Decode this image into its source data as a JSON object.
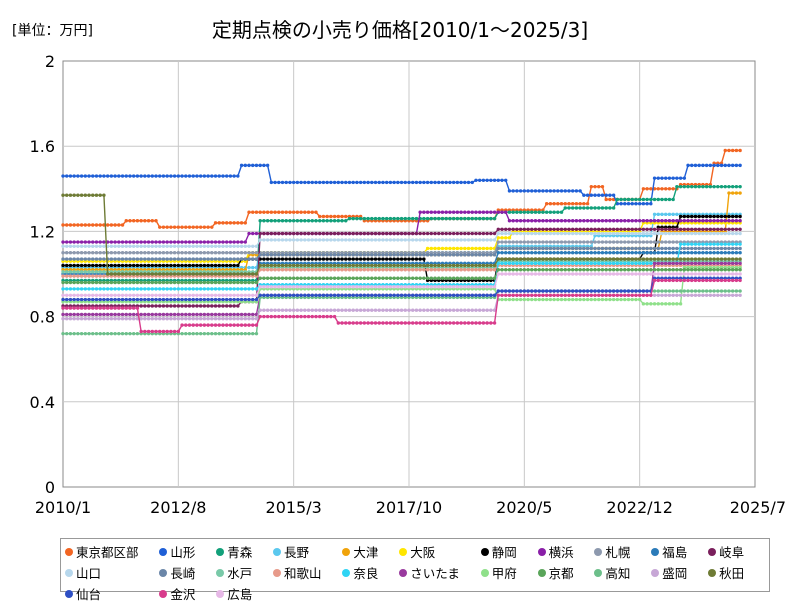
{
  "chart_data": {
    "type": "line",
    "title": "定期点検の小売り価格[2010/1～2025/3]",
    "unit_label": "[単位：万円]",
    "x_ticks": [
      "2010/1",
      "2012/8",
      "2015/3",
      "2017/10",
      "2020/5",
      "2022/12",
      "2025/7"
    ],
    "xlim": [
      "2010/1",
      "2025/7"
    ],
    "y_ticks": [
      "0",
      "0.4",
      "0.8",
      "1.2",
      "1.6",
      "2"
    ],
    "ylim": [
      0,
      2
    ],
    "grid": true,
    "legend_position": "bottom",
    "series": [
      {
        "name": "東京都区部",
        "color": "#f26522",
        "points": [
          [
            "2010/1",
            1.23
          ],
          [
            "2011/5",
            1.23
          ],
          [
            "2011/6",
            1.25
          ],
          [
            "2012/2",
            1.25
          ],
          [
            "2012/3",
            1.22
          ],
          [
            "2013/5",
            1.22
          ],
          [
            "2013/6",
            1.24
          ],
          [
            "2014/2",
            1.24
          ],
          [
            "2014/3",
            1.29
          ],
          [
            "2015/9",
            1.29
          ],
          [
            "2015/10",
            1.27
          ],
          [
            "2016/9",
            1.27
          ],
          [
            "2016/10",
            1.25
          ],
          [
            "2018/3",
            1.25
          ],
          [
            "2018/4",
            1.26
          ],
          [
            "2019/9",
            1.26
          ],
          [
            "2019/10",
            1.3
          ],
          [
            "2020/10",
            1.3
          ],
          [
            "2020/11",
            1.33
          ],
          [
            "2021/10",
            1.33
          ],
          [
            "2021/11",
            1.41
          ],
          [
            "2022/2",
            1.41
          ],
          [
            "2022/3",
            1.35
          ],
          [
            "2022/12",
            1.35
          ],
          [
            "2023/1",
            1.4
          ],
          [
            "2023/10",
            1.4
          ],
          [
            "2023/11",
            1.42
          ],
          [
            "2024/7",
            1.42
          ],
          [
            "2024/8",
            1.52
          ],
          [
            "2024/10",
            1.52
          ],
          [
            "2024/11",
            1.58
          ],
          [
            "2025/3",
            1.58
          ]
        ]
      },
      {
        "name": "山形",
        "color": "#1f5fd6",
        "points": [
          [
            "2010/1",
            1.46
          ],
          [
            "2013/12",
            1.46
          ],
          [
            "2014/1",
            1.51
          ],
          [
            "2014/8",
            1.51
          ],
          [
            "2014/9",
            1.43
          ],
          [
            "2019/3",
            1.43
          ],
          [
            "2019/4",
            1.44
          ],
          [
            "2019/12",
            1.44
          ],
          [
            "2020/1",
            1.39
          ],
          [
            "2021/8",
            1.39
          ],
          [
            "2021/9",
            1.37
          ],
          [
            "2022/5",
            1.37
          ],
          [
            "2022/6",
            1.33
          ],
          [
            "2023/3",
            1.33
          ],
          [
            "2023/4",
            1.45
          ],
          [
            "2023/12",
            1.45
          ],
          [
            "2024/1",
            1.51
          ],
          [
            "2025/3",
            1.51
          ]
        ]
      },
      {
        "name": "青森",
        "color": "#12a07a",
        "points": [
          [
            "2010/1",
            0.97
          ],
          [
            "2014/5",
            0.97
          ],
          [
            "2014/6",
            1.25
          ],
          [
            "2016/5",
            1.25
          ],
          [
            "2016/6",
            1.26
          ],
          [
            "2019/9",
            1.26
          ],
          [
            "2019/10",
            1.29
          ],
          [
            "2021/3",
            1.29
          ],
          [
            "2021/4",
            1.31
          ],
          [
            "2022/5",
            1.31
          ],
          [
            "2022/6",
            1.35
          ],
          [
            "2023/9",
            1.35
          ],
          [
            "2023/10",
            1.41
          ],
          [
            "2025/3",
            1.41
          ]
        ]
      },
      {
        "name": "長野",
        "color": "#5bc8ee",
        "points": [
          [
            "2010/1",
            1.03
          ],
          [
            "2014/5",
            1.03
          ],
          [
            "2014/6",
            1.1
          ],
          [
            "2019/9",
            1.1
          ],
          [
            "2019/10",
            1.13
          ],
          [
            "2021/11",
            1.13
          ],
          [
            "2021/12",
            1.18
          ],
          [
            "2023/3",
            1.18
          ],
          [
            "2023/4",
            1.28
          ],
          [
            "2025/3",
            1.28
          ]
        ]
      },
      {
        "name": "大津",
        "color": "#f0a30a",
        "points": [
          [
            "2010/1",
            1.02
          ],
          [
            "2014/2",
            1.02
          ],
          [
            "2014/3",
            1.09
          ],
          [
            "2019/9",
            1.09
          ],
          [
            "2019/10",
            1.12
          ],
          [
            "2023/5",
            1.12
          ],
          [
            "2023/6",
            1.2
          ],
          [
            "2024/11",
            1.2
          ],
          [
            "2024/12",
            1.38
          ],
          [
            "2025/3",
            1.38
          ]
        ]
      },
      {
        "name": "大阪",
        "color": "#ffe600",
        "points": [
          [
            "2010/1",
            1.06
          ],
          [
            "2014/2",
            1.06
          ],
          [
            "2014/3",
            1.1
          ],
          [
            "2018/2",
            1.1
          ],
          [
            "2018/3",
            1.12
          ],
          [
            "2019/9",
            1.12
          ],
          [
            "2019/10",
            1.17
          ],
          [
            "2020/1",
            1.17
          ],
          [
            "2020/2",
            1.2
          ],
          [
            "2022/12",
            1.2
          ],
          [
            "2023/1",
            1.24
          ],
          [
            "2025/3",
            1.24
          ]
        ]
      },
      {
        "name": "静岡",
        "color": "#000000",
        "points": [
          [
            "2010/1",
            1.04
          ],
          [
            "2013/12",
            1.04
          ],
          [
            "2014/1",
            1.07
          ],
          [
            "2018/2",
            1.07
          ],
          [
            "2018/3",
            0.97
          ],
          [
            "2019/9",
            0.97
          ],
          [
            "2019/10",
            1.07
          ],
          [
            "2022/12",
            1.07
          ],
          [
            "2023/1",
            1.1
          ],
          [
            "2023/4",
            1.1
          ],
          [
            "2023/5",
            1.22
          ],
          [
            "2023/10",
            1.22
          ],
          [
            "2023/11",
            1.27
          ],
          [
            "2025/3",
            1.27
          ]
        ]
      },
      {
        "name": "横浜",
        "color": "#8a1fa8",
        "points": [
          [
            "2010/1",
            1.15
          ],
          [
            "2014/2",
            1.15
          ],
          [
            "2014/3",
            1.19
          ],
          [
            "2017/12",
            1.19
          ],
          [
            "2018/1",
            1.29
          ],
          [
            "2019/12",
            1.29
          ],
          [
            "2020/1",
            1.25
          ],
          [
            "2025/3",
            1.25
          ]
        ]
      },
      {
        "name": "札幌",
        "color": "#8d99ae",
        "points": [
          [
            "2010/1",
            1.1
          ],
          [
            "2019/9",
            1.1
          ],
          [
            "2019/10",
            1.15
          ],
          [
            "2025/3",
            1.15
          ]
        ]
      },
      {
        "name": "福島",
        "color": "#2b7bb9",
        "points": [
          [
            "2010/1",
            1.0
          ],
          [
            "2014/5",
            1.0
          ],
          [
            "2014/6",
            1.05
          ],
          [
            "2019/9",
            1.05
          ],
          [
            "2019/10",
            1.1
          ],
          [
            "2025/3",
            1.1
          ]
        ]
      },
      {
        "name": "岐阜",
        "color": "#7a1f5c",
        "points": [
          [
            "2010/1",
            0.85
          ],
          [
            "2013/12",
            0.85
          ],
          [
            "2014/1",
            0.87
          ],
          [
            "2014/5",
            0.87
          ],
          [
            "2014/6",
            1.19
          ],
          [
            "2019/9",
            1.19
          ],
          [
            "2019/10",
            1.21
          ],
          [
            "2025/3",
            1.21
          ]
        ]
      },
      {
        "name": "山口",
        "color": "#b7d7ec",
        "points": [
          [
            "2010/1",
            1.13
          ],
          [
            "2014/5",
            1.13
          ],
          [
            "2014/6",
            1.16
          ],
          [
            "2019/9",
            1.16
          ],
          [
            "2019/10",
            1.19
          ],
          [
            "2025/3",
            1.19
          ]
        ]
      },
      {
        "name": "長崎",
        "color": "#6b86a8",
        "points": [
          [
            "2010/1",
            1.07
          ],
          [
            "2014/5",
            1.07
          ],
          [
            "2014/6",
            1.09
          ],
          [
            "2019/9",
            1.09
          ],
          [
            "2019/10",
            1.12
          ],
          [
            "2025/3",
            1.12
          ]
        ]
      },
      {
        "name": "水戸",
        "color": "#79c9a8",
        "points": [
          [
            "2010/1",
            1.01
          ],
          [
            "2014/5",
            1.01
          ],
          [
            "2014/6",
            1.03
          ],
          [
            "2019/9",
            1.03
          ],
          [
            "2019/10",
            1.06
          ],
          [
            "2025/3",
            1.06
          ]
        ]
      },
      {
        "name": "和歌山",
        "color": "#e79a8a",
        "points": [
          [
            "2010/1",
            0.99
          ],
          [
            "2014/5",
            0.99
          ],
          [
            "2014/6",
            1.02
          ],
          [
            "2019/9",
            1.02
          ],
          [
            "2019/10",
            1.04
          ],
          [
            "2025/3",
            1.04
          ]
        ]
      },
      {
        "name": "奈良",
        "color": "#2fd4f4",
        "points": [
          [
            "2010/1",
            0.93
          ],
          [
            "2014/5",
            0.93
          ],
          [
            "2014/6",
            0.95
          ],
          [
            "2019/9",
            0.95
          ],
          [
            "2019/10",
            1.05
          ],
          [
            "2023/10",
            1.05
          ],
          [
            "2023/11",
            1.14
          ],
          [
            "2025/3",
            1.14
          ]
        ]
      },
      {
        "name": "さいたま",
        "color": "#993a9e",
        "points": [
          [
            "2010/1",
            0.81
          ],
          [
            "2014/5",
            0.81
          ],
          [
            "2014/6",
            0.9
          ],
          [
            "2019/9",
            0.9
          ],
          [
            "2019/10",
            0.92
          ],
          [
            "2023/3",
            0.92
          ],
          [
            "2023/4",
            1.05
          ],
          [
            "2025/3",
            1.05
          ]
        ]
      },
      {
        "name": "甲府",
        "color": "#8fe08a",
        "points": [
          [
            "2010/1",
            0.87
          ],
          [
            "2014/5",
            0.87
          ],
          [
            "2014/6",
            0.93
          ],
          [
            "2019/9",
            0.93
          ],
          [
            "2019/10",
            0.88
          ],
          [
            "2022/12",
            0.88
          ],
          [
            "2023/1",
            0.86
          ],
          [
            "2023/11",
            0.86
          ],
          [
            "2023/12",
            1.03
          ],
          [
            "2025/3",
            1.03
          ]
        ]
      },
      {
        "name": "京都",
        "color": "#5aa55a",
        "points": [
          [
            "2010/1",
            0.96
          ],
          [
            "2014/5",
            0.96
          ],
          [
            "2014/6",
            0.98
          ],
          [
            "2019/9",
            0.98
          ],
          [
            "2019/10",
            1.02
          ],
          [
            "2025/3",
            1.02
          ]
        ]
      },
      {
        "name": "高知",
        "color": "#6cbf8a",
        "points": [
          [
            "2010/1",
            0.72
          ],
          [
            "2014/5",
            0.72
          ],
          [
            "2014/6",
            0.89
          ],
          [
            "2019/9",
            0.89
          ],
          [
            "2019/10",
            0.92
          ],
          [
            "2025/3",
            0.92
          ]
        ]
      },
      {
        "name": "盛岡",
        "color": "#c7a7d6",
        "points": [
          [
            "2010/1",
            0.79
          ],
          [
            "2014/5",
            0.79
          ],
          [
            "2014/6",
            0.83
          ],
          [
            "2019/9",
            0.83
          ],
          [
            "2019/10",
            0.9
          ],
          [
            "2025/3",
            0.9
          ]
        ]
      },
      {
        "name": "秋田",
        "color": "#6e7b35",
        "points": [
          [
            "2010/1",
            1.37
          ],
          [
            "2010/12",
            1.37
          ],
          [
            "2011/1",
            1.0
          ],
          [
            "2014/5",
            1.0
          ],
          [
            "2014/6",
            1.04
          ],
          [
            "2019/9",
            1.04
          ],
          [
            "2019/10",
            1.07
          ],
          [
            "2025/3",
            1.07
          ]
        ]
      },
      {
        "name": "仙台",
        "color": "#2e4fc4",
        "points": [
          [
            "2010/1",
            0.88
          ],
          [
            "2014/5",
            0.88
          ],
          [
            "2014/6",
            0.9
          ],
          [
            "2019/9",
            0.9
          ],
          [
            "2019/10",
            0.92
          ],
          [
            "2023/3",
            0.92
          ],
          [
            "2023/4",
            0.98
          ],
          [
            "2025/3",
            0.98
          ]
        ]
      },
      {
        "name": "金沢",
        "color": "#d83c8c",
        "points": [
          [
            "2010/1",
            0.84
          ],
          [
            "2011/9",
            0.84
          ],
          [
            "2011/10",
            0.73
          ],
          [
            "2012/8",
            0.73
          ],
          [
            "2012/9",
            0.76
          ],
          [
            "2014/5",
            0.76
          ],
          [
            "2014/6",
            0.8
          ],
          [
            "2016/2",
            0.8
          ],
          [
            "2016/3",
            0.77
          ],
          [
            "2019/9",
            0.77
          ],
          [
            "2019/10",
            0.9
          ],
          [
            "2023/3",
            0.9
          ],
          [
            "2023/4",
            0.97
          ],
          [
            "2025/3",
            0.97
          ]
        ]
      },
      {
        "name": "広島",
        "color": "#e6b8e6",
        "points": [
          [
            "2010/1",
            0.9
          ],
          [
            "2014/5",
            0.9
          ],
          [
            "2014/6",
            0.94
          ],
          [
            "2019/9",
            0.94
          ],
          [
            "2019/10",
            1.0
          ],
          [
            "2025/3",
            1.0
          ]
        ]
      }
    ]
  }
}
